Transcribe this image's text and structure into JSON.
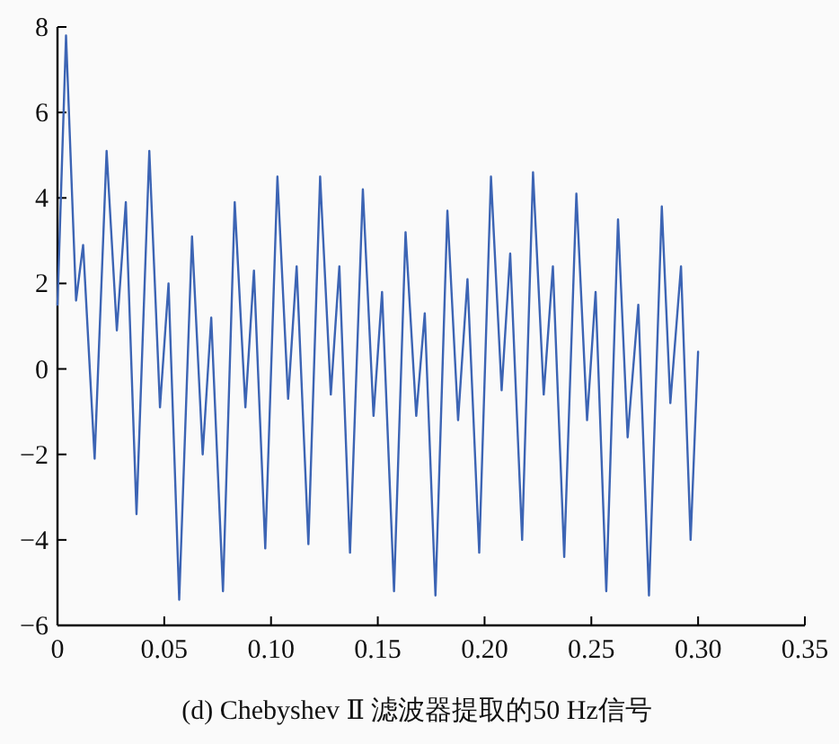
{
  "chart_data": {
    "type": "line",
    "xlabel": "(d) Chebyshev Ⅱ 滤波器提取的50 Hz信号",
    "x": [
      0,
      0.004,
      0.0087,
      0.012,
      0.0174,
      0.023,
      0.0278,
      0.032,
      0.037,
      0.043,
      0.048,
      0.052,
      0.057,
      0.063,
      0.068,
      0.072,
      0.0775,
      0.083,
      0.088,
      0.092,
      0.0973,
      0.103,
      0.108,
      0.112,
      0.1175,
      0.123,
      0.128,
      0.132,
      0.137,
      0.143,
      0.148,
      0.152,
      0.1576,
      0.163,
      0.168,
      0.172,
      0.177,
      0.1826,
      0.1876,
      0.192,
      0.1975,
      0.203,
      0.208,
      0.212,
      0.2176,
      0.2227,
      0.2277,
      0.232,
      0.2373,
      0.243,
      0.248,
      0.252,
      0.257,
      0.2625,
      0.267,
      0.272,
      0.277,
      0.283,
      0.287,
      0.292,
      0.2965,
      0.3
    ],
    "values": [
      1.5,
      7.8,
      1.6,
      2.9,
      -2.1,
      5.1,
      0.9,
      3.9,
      -3.4,
      5.1,
      -0.9,
      2,
      -5.4,
      3.1,
      -2,
      1.2,
      -5.2,
      3.9,
      -0.9,
      2.3,
      -4.2,
      4.5,
      -0.7,
      2.4,
      -4.1,
      4.5,
      -0.6,
      2.4,
      -4.3,
      4.2,
      -1.1,
      1.8,
      -5.2,
      3.2,
      -1.1,
      1.3,
      -5.3,
      3.7,
      -1.2,
      2.1,
      -4.3,
      4.5,
      -0.5,
      2.7,
      -4,
      4.6,
      -0.6,
      2.4,
      -4.4,
      4.1,
      -1.2,
      1.8,
      -5.2,
      3.5,
      -1.6,
      1.5,
      -5.3,
      3.8,
      -0.8,
      2.4,
      -4,
      0.4
    ],
    "color": "#3c64b4",
    "xlim": [
      0,
      0.35
    ],
    "ylim": [
      -6,
      8
    ],
    "xticks": [
      {
        "value": 0,
        "label": "0"
      },
      {
        "value": 0.05,
        "label": "0.05"
      },
      {
        "value": 0.1,
        "label": "0.10"
      },
      {
        "value": 0.15,
        "label": "0.15"
      },
      {
        "value": 0.2,
        "label": "0.20"
      },
      {
        "value": 0.25,
        "label": "0.25"
      },
      {
        "value": 0.3,
        "label": "0.30"
      },
      {
        "value": 0.35,
        "label": "0.35"
      }
    ],
    "yticks": [
      {
        "value": -6,
        "label": "−6"
      },
      {
        "value": -4,
        "label": "−4"
      },
      {
        "value": -2,
        "label": "−2"
      },
      0,
      2,
      4,
      6,
      8
    ]
  }
}
